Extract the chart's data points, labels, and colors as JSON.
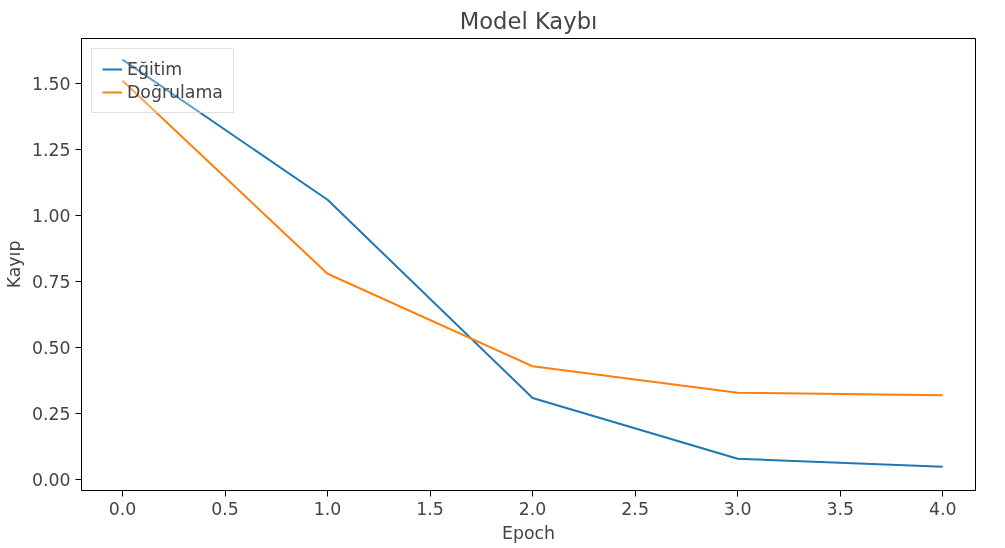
{
  "chart_data": {
    "type": "line",
    "title": "Model Kaybı",
    "xlabel": "Epoch",
    "ylabel": "Kayıp",
    "x": [
      0,
      1,
      2,
      3,
      4
    ],
    "series": [
      {
        "name": "Eğitim",
        "color": "#1f77b4",
        "values": [
          1.59,
          1.06,
          0.31,
          0.08,
          0.05
        ]
      },
      {
        "name": "Doğrulama",
        "color": "#ff7f0e",
        "values": [
          1.51,
          0.78,
          0.43,
          0.33,
          0.32
        ]
      }
    ],
    "xlim": [
      -0.2,
      4.16
    ],
    "ylim": [
      -0.04,
      1.67
    ],
    "xticks": [
      {
        "value": 0,
        "label": "0.0"
      },
      0.5,
      {
        "value": 1,
        "label": "1.0"
      },
      1.5,
      {
        "value": 2,
        "label": "2.0"
      },
      2.5,
      {
        "value": 3,
        "label": "3.0"
      },
      3.5,
      {
        "value": 4,
        "label": "4.0"
      }
    ],
    "yticks": [
      {
        "value": 0,
        "label": "0.00"
      },
      0.25,
      {
        "value": 0.5,
        "label": "0.50"
      },
      0.75,
      {
        "value": 1,
        "label": "1.00"
      },
      1.25,
      {
        "value": 1.5,
        "label": "1.50"
      }
    ],
    "grid": false,
    "legend": "top left",
    "line_style": "solid",
    "marker": "none"
  }
}
